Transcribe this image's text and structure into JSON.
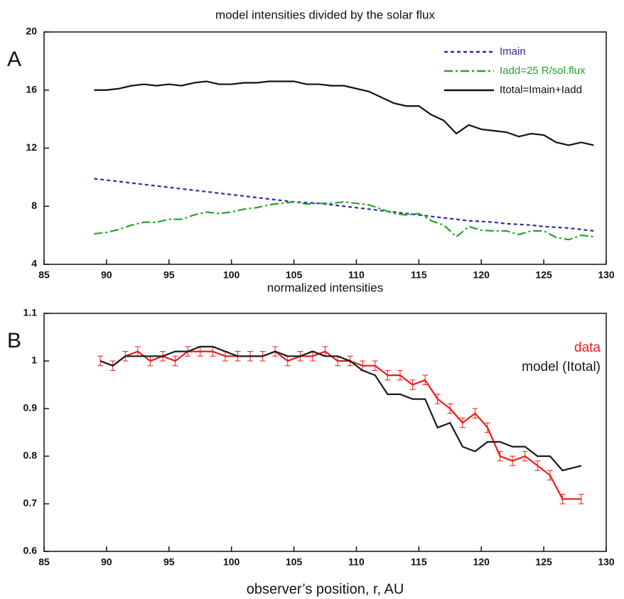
{
  "chart_data": [
    {
      "type": "line",
      "title": "model intensities divided by the solar flux",
      "panel_label": "A",
      "x": [
        89,
        90,
        91,
        92,
        93,
        94,
        95,
        96,
        97,
        98,
        99,
        100,
        101,
        102,
        103,
        104,
        105,
        106,
        107,
        108,
        109,
        110,
        111,
        112,
        113,
        114,
        115,
        116,
        117,
        118,
        119,
        120,
        121,
        122,
        123,
        124,
        125,
        126,
        127,
        128,
        129
      ],
      "series": [
        {
          "name": "Imain",
          "color": "#2e2e9e",
          "dash": "5,4",
          "values": [
            9.9,
            9.8,
            9.7,
            9.6,
            9.5,
            9.4,
            9.3,
            9.2,
            9.1,
            9.0,
            8.9,
            8.8,
            8.7,
            8.6,
            8.5,
            8.4,
            8.3,
            8.25,
            8.2,
            8.1,
            8.0,
            7.9,
            7.8,
            7.7,
            7.6,
            7.5,
            7.4,
            7.3,
            7.2,
            7.1,
            7.0,
            6.95,
            6.9,
            6.8,
            6.75,
            6.7,
            6.6,
            6.55,
            6.5,
            6.4,
            6.3
          ]
        },
        {
          "name": "Iadd=25 R/sol.flux",
          "color": "#22a52a",
          "dash": "12,4,3,4",
          "values": [
            6.1,
            6.2,
            6.4,
            6.7,
            6.9,
            6.9,
            7.1,
            7.1,
            7.4,
            7.6,
            7.5,
            7.6,
            7.8,
            7.9,
            8.1,
            8.2,
            8.3,
            8.15,
            8.2,
            8.2,
            8.3,
            8.2,
            8.1,
            7.8,
            7.5,
            7.4,
            7.5,
            7.0,
            6.7,
            5.9,
            6.6,
            6.35,
            6.3,
            6.3,
            6.05,
            6.3,
            6.3,
            5.85,
            5.7,
            6.0,
            5.9
          ]
        },
        {
          "name": "Itotal=Imain+Iadd",
          "color": "#111111",
          "dash": "",
          "values": [
            16.0,
            16.0,
            16.1,
            16.3,
            16.4,
            16.3,
            16.4,
            16.3,
            16.5,
            16.6,
            16.4,
            16.4,
            16.5,
            16.5,
            16.6,
            16.6,
            16.6,
            16.4,
            16.4,
            16.3,
            16.3,
            16.1,
            15.9,
            15.5,
            15.1,
            14.9,
            14.9,
            14.3,
            13.9,
            13.0,
            13.6,
            13.3,
            13.2,
            13.1,
            12.8,
            13.0,
            12.9,
            12.4,
            12.2,
            12.4,
            12.2
          ]
        }
      ],
      "xlim": [
        85,
        130
      ],
      "xticks": [
        85,
        90,
        95,
        100,
        105,
        110,
        115,
        120,
        125,
        130
      ],
      "ylim": [
        4,
        20
      ],
      "yticks": [
        4,
        8,
        12,
        16,
        20
      ],
      "legend": "upper right",
      "legend_lines": true
    },
    {
      "type": "line",
      "title": "normalized intensities",
      "panel_label": "B",
      "xlabel": "observer’s position, r, AU",
      "x": [
        89.5,
        90.5,
        91.5,
        92.5,
        93.5,
        94.5,
        95.5,
        96.5,
        97.5,
        98.5,
        99.5,
        100.5,
        101.5,
        102.5,
        103.5,
        104.5,
        105.5,
        106.5,
        107.5,
        108.5,
        109.5,
        110.5,
        111.5,
        112.5,
        113.5,
        114.5,
        115.5,
        116.5,
        117.5,
        118.5,
        119.5,
        120.5,
        121.5,
        122.5,
        123.5,
        124.5,
        125.5,
        126.5,
        128.0
      ],
      "series": [
        {
          "name": "data",
          "color": "#ee1a1a",
          "dash": "",
          "values": [
            1.0,
            0.99,
            1.01,
            1.02,
            1.0,
            1.01,
            1.0,
            1.02,
            1.02,
            1.02,
            1.01,
            1.01,
            1.01,
            1.01,
            1.02,
            1.0,
            1.01,
            1.01,
            1.02,
            1.0,
            1.0,
            0.99,
            0.99,
            0.97,
            0.97,
            0.95,
            0.96,
            0.92,
            0.9,
            0.87,
            0.89,
            0.86,
            0.8,
            0.79,
            0.8,
            0.78,
            0.76,
            0.71,
            0.71
          ],
          "errors": [
            0.01,
            0.01,
            0.01,
            0.01,
            0.01,
            0.01,
            0.01,
            0.01,
            0.01,
            0.01,
            0.01,
            0.01,
            0.01,
            0.01,
            0.01,
            0.01,
            0.01,
            0.01,
            0.01,
            0.01,
            0.01,
            0.01,
            0.01,
            0.01,
            0.01,
            0.01,
            0.01,
            0.01,
            0.01,
            0.01,
            0.01,
            0.01,
            0.01,
            0.01,
            0.01,
            0.01,
            0.01,
            0.01,
            0.01
          ]
        },
        {
          "name": "model (Itotal)",
          "color": "#1a1a1a",
          "dash": "",
          "values": [
            1.0,
            0.99,
            1.01,
            1.01,
            1.01,
            1.01,
            1.02,
            1.02,
            1.03,
            1.03,
            1.02,
            1.01,
            1.01,
            1.01,
            1.02,
            1.01,
            1.01,
            1.02,
            1.01,
            1.01,
            1.0,
            0.98,
            0.97,
            0.93,
            0.93,
            0.92,
            0.92,
            0.86,
            0.87,
            0.82,
            0.81,
            0.83,
            0.83,
            0.82,
            0.82,
            0.8,
            0.8,
            0.77,
            0.78
          ]
        }
      ],
      "xlim": [
        85,
        130
      ],
      "xticks": [
        85,
        90,
        95,
        100,
        105,
        110,
        115,
        120,
        125,
        130
      ],
      "ylim": [
        0.6,
        1.1
      ],
      "yticks": [
        0.6,
        0.7,
        0.8,
        0.9,
        1,
        1.1
      ],
      "legend": "upper right",
      "legend_lines": false
    }
  ]
}
